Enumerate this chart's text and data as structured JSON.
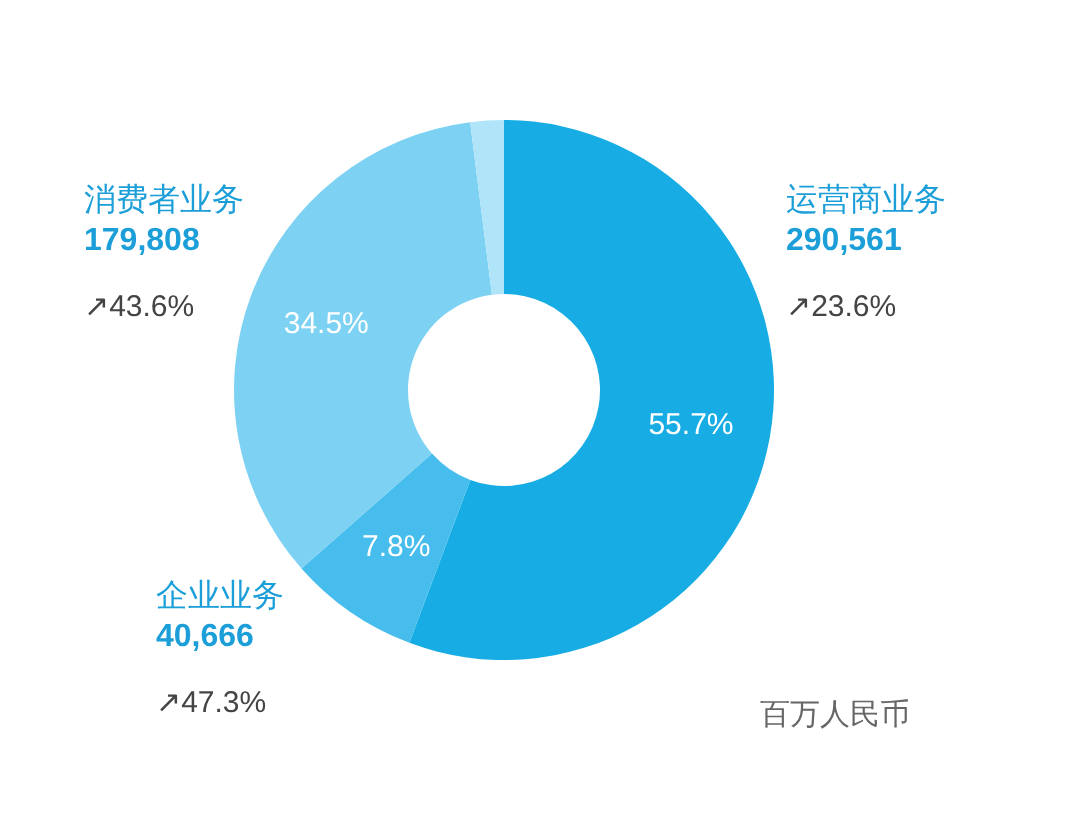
{
  "chart_data": {
    "type": "donut",
    "categories": [
      "运营商业务",
      "企业业务",
      "消费者业务",
      null
    ],
    "values": [
      55.7,
      7.8,
      34.5,
      2.0
    ],
    "value_labels": [
      "55.7%",
      "7.8%",
      "34.5%",
      null
    ],
    "colors": [
      "#17ade4",
      "#46bdec",
      "#7dd2f4",
      "#b0e4f9"
    ],
    "annotations": [
      "290,561",
      "↗23.6%",
      "40,666",
      "↗47.3%",
      "179,808",
      "↗43.6%",
      "百万人民币"
    ]
  }
}
